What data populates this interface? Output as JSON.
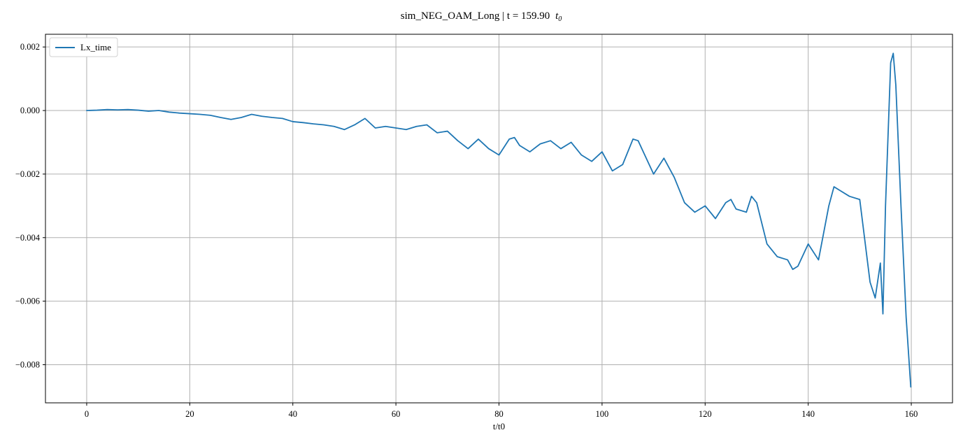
{
  "chart_data": {
    "type": "line",
    "title": "sim_NEG_OAM_Long | t = 159.90",
    "title_math": "t",
    "title_math_sub": "0",
    "xlabel": "t/t0",
    "ylabel": "",
    "xlim": [
      -8,
      168
    ],
    "ylim": [
      -0.0092,
      0.0024
    ],
    "xticks": [
      0,
      20,
      40,
      60,
      80,
      100,
      120,
      140,
      160
    ],
    "xtick_labels": [
      "0",
      "20",
      "40",
      "60",
      "80",
      "100",
      "120",
      "140",
      "160"
    ],
    "yticks": [
      0.002,
      0.0,
      -0.002,
      -0.004,
      -0.006,
      -0.008
    ],
    "ytick_labels": [
      "0.002",
      "0.000",
      "−0.002",
      "−0.004",
      "−0.006",
      "−0.008"
    ],
    "grid": true,
    "legend_position": "upper-left",
    "series": [
      {
        "name": "Lx_time",
        "color": "#1f77b4",
        "x": [
          0,
          2,
          4,
          6,
          8,
          10,
          12,
          14,
          16,
          18,
          20,
          22,
          24,
          26,
          28,
          30,
          32,
          34,
          36,
          38,
          40,
          42,
          44,
          46,
          48,
          50,
          52,
          54,
          56,
          58,
          60,
          62,
          64,
          66,
          68,
          70,
          72,
          74,
          76,
          78,
          80,
          82,
          83,
          84,
          86,
          88,
          90,
          92,
          94,
          96,
          98,
          100,
          102,
          104,
          106,
          107,
          108,
          110,
          112,
          114,
          116,
          118,
          120,
          122,
          124,
          125,
          126,
          128,
          129,
          130,
          132,
          134,
          136,
          137,
          138,
          140,
          142,
          144,
          145,
          146,
          148,
          150,
          152,
          153,
          154,
          154.5,
          155,
          156,
          156.5,
          157,
          158,
          159,
          159.9
        ],
        "y": [
          0.0,
          1e-05,
          3e-05,
          2e-05,
          3e-05,
          1e-05,
          -2e-05,
          0.0,
          -5e-05,
          -8e-05,
          -0.0001,
          -0.00012,
          -0.00015,
          -0.00022,
          -0.00028,
          -0.00022,
          -0.00012,
          -0.00018,
          -0.00022,
          -0.00025,
          -0.00035,
          -0.00038,
          -0.00042,
          -0.00045,
          -0.0005,
          -0.0006,
          -0.00045,
          -0.00025,
          -0.00055,
          -0.0005,
          -0.00055,
          -0.0006,
          -0.0005,
          -0.00045,
          -0.0007,
          -0.00065,
          -0.00095,
          -0.0012,
          -0.0009,
          -0.0012,
          -0.0014,
          -0.0009,
          -0.00085,
          -0.0011,
          -0.0013,
          -0.00105,
          -0.00095,
          -0.0012,
          -0.001,
          -0.0014,
          -0.0016,
          -0.0013,
          -0.0019,
          -0.0017,
          -0.0009,
          -0.00095,
          -0.0013,
          -0.002,
          -0.0015,
          -0.0021,
          -0.0029,
          -0.0032,
          -0.003,
          -0.0034,
          -0.0029,
          -0.0028,
          -0.0031,
          -0.0032,
          -0.0027,
          -0.0029,
          -0.0042,
          -0.0046,
          -0.0047,
          -0.005,
          -0.0049,
          -0.0042,
          -0.0047,
          -0.003,
          -0.0024,
          -0.0025,
          -0.0027,
          -0.0028,
          -0.0054,
          -0.0059,
          -0.0048,
          -0.0064,
          -0.003,
          0.0015,
          0.0018,
          0.0008,
          -0.003,
          -0.0065,
          -0.0087
        ]
      }
    ]
  }
}
